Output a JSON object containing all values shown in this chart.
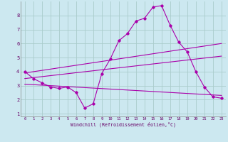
{
  "xlabel": "Windchill (Refroidissement éolien,°C)",
  "xlim": [
    -0.5,
    23.5
  ],
  "ylim": [
    0.8,
    9.0
  ],
  "xticks": [
    0,
    1,
    2,
    3,
    4,
    5,
    6,
    7,
    8,
    9,
    10,
    11,
    12,
    13,
    14,
    15,
    16,
    17,
    18,
    19,
    20,
    21,
    22,
    23
  ],
  "yticks": [
    1,
    2,
    3,
    4,
    5,
    6,
    7,
    8
  ],
  "bg_color": "#cce8f0",
  "grid_color": "#aacccc",
  "line_color": "#aa00aa",
  "line1_x": [
    0,
    1,
    2,
    3,
    4,
    5,
    6,
    7,
    8,
    9,
    10,
    11,
    12,
    13,
    14,
    15,
    16,
    17,
    18,
    19,
    20,
    21,
    22,
    23
  ],
  "line1_y": [
    4.0,
    3.5,
    3.2,
    2.9,
    2.8,
    2.9,
    2.5,
    1.4,
    1.7,
    3.85,
    4.9,
    6.2,
    6.7,
    7.6,
    7.8,
    8.6,
    8.7,
    7.3,
    6.1,
    5.4,
    4.0,
    2.9,
    2.2,
    2.1
  ],
  "line2_x": [
    0,
    23
  ],
  "line2_y": [
    3.9,
    6.0
  ],
  "line3_x": [
    0,
    23
  ],
  "line3_y": [
    3.5,
    5.1
  ],
  "line4_x": [
    0,
    23
  ],
  "line4_y": [
    3.1,
    2.3
  ]
}
